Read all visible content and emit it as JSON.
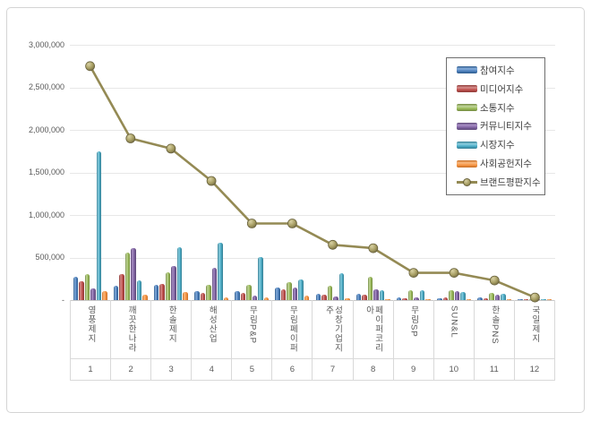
{
  "page": {
    "background": "#ffffff",
    "frame_border_color": "#d4d4d4"
  },
  "chart_data": {
    "type": "bar",
    "subtype": "grouped-bar-with-line-overlay",
    "title": "",
    "legend_position": "top-right",
    "grid": "horizontal-on",
    "categories": [
      "영풍제지",
      "깨끗한나라",
      "한솔제지",
      "해성산업",
      "무림P&P",
      "무림페이퍼",
      "성창기업지주",
      "페이퍼코리아",
      "무림SP",
      "SUN&L",
      "한솔PNS",
      "국일제지"
    ],
    "category_numbers": [
      "1",
      "2",
      "3",
      "4",
      "5",
      "6",
      "7",
      "8",
      "9",
      "10",
      "11",
      "12"
    ],
    "series": [
      {
        "name": "참여지수",
        "color": {
          "base": "#4F81BD",
          "light": "#85ADDB",
          "dark": "#2C5A8C"
        },
        "values": [
          275000,
          170000,
          180000,
          100000,
          100000,
          150000,
          70000,
          78000,
          30000,
          25000,
          30000,
          8000
        ]
      },
      {
        "name": "미디어지수",
        "color": {
          "base": "#C0504D",
          "light": "#D78E8C",
          "dark": "#8E3A38"
        },
        "values": [
          225000,
          305000,
          185000,
          85000,
          85000,
          125000,
          63000,
          65000,
          22000,
          28000,
          22000,
          6000
        ]
      },
      {
        "name": "소통지수",
        "color": {
          "base": "#9BBB59",
          "light": "#C2D69B",
          "dark": "#71893F"
        },
        "values": [
          310000,
          555000,
          330000,
          175000,
          180000,
          210000,
          170000,
          270000,
          120000,
          115000,
          85000,
          10000
        ]
      },
      {
        "name": "커뮤니티지수",
        "color": {
          "base": "#8064A2",
          "light": "#A98FC6",
          "dark": "#5C4776"
        },
        "values": [
          140000,
          615000,
          405000,
          375000,
          48000,
          148000,
          42000,
          122000,
          35000,
          100000,
          62000,
          5000
        ]
      },
      {
        "name": "시장지수",
        "color": {
          "base": "#4BACC6",
          "light": "#8CCFE0",
          "dark": "#357E93"
        },
        "values": [
          1750000,
          230000,
          620000,
          675000,
          510000,
          245000,
          320000,
          112000,
          120000,
          90000,
          76000,
          8000
        ]
      },
      {
        "name": "사회공헌지수",
        "color": {
          "base": "#F79646",
          "light": "#FAB97F",
          "dark": "#C86E24"
        },
        "values": [
          100000,
          62000,
          95000,
          28000,
          28000,
          55000,
          24000,
          15000,
          14000,
          14000,
          8000,
          4000
        ]
      }
    ],
    "line_series": {
      "name": "브랜드평판지수",
      "line_color": "#948A54",
      "marker_fill": "#A89F64",
      "marker_edge": "#69623D",
      "values": [
        2750000,
        1900000,
        1780000,
        1400000,
        900000,
        900000,
        650000,
        610000,
        320000,
        320000,
        230000,
        30000
      ]
    },
    "y_axis": {
      "min": 0,
      "max": 3000000,
      "ticks": [
        {
          "label": "3,000,000",
          "value": 3000000
        },
        {
          "label": "2,500,000",
          "value": 2500000
        },
        {
          "label": "2,000,000",
          "value": 2000000
        },
        {
          "label": "1,500,000",
          "value": 1500000
        },
        {
          "label": "1,000,000",
          "value": 1000000
        },
        {
          "label": "500,000",
          "value": 500000
        },
        {
          "label": "-",
          "value": 0
        }
      ]
    }
  }
}
